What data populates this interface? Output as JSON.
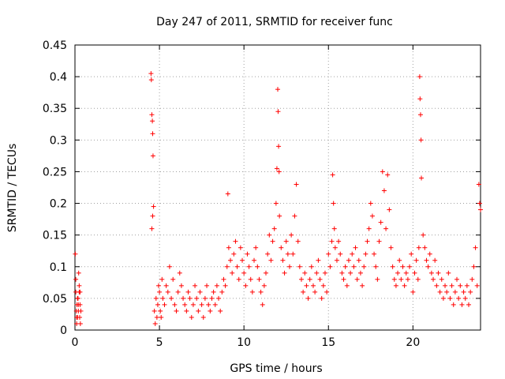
{
  "chart_data": {
    "type": "scatter",
    "title": "Day 247 of 2011, SRMTID for receiver func",
    "xlabel": "GPS time / hours",
    "ylabel": "SRMTID / TECUs",
    "xlim": [
      0,
      24
    ],
    "ylim": [
      0,
      0.45
    ],
    "x_ticks": [
      0,
      5,
      10,
      15,
      20
    ],
    "y_ticks": [
      0,
      0.05,
      0.1,
      0.15,
      0.2,
      0.25,
      0.3,
      0.35,
      0.4,
      0.45
    ],
    "x_tick_labels": [
      "0",
      "5",
      "10",
      "15",
      "20"
    ],
    "y_tick_labels": [
      "0",
      "0.05",
      "0.1",
      "0.15",
      "0.2",
      "0.25",
      "0.3",
      "0.35",
      "0.4",
      "0.45"
    ],
    "grid": true,
    "marker": "+",
    "color": "#ff0000",
    "series": [
      {
        "name": "SRMTID",
        "x": [
          0.02,
          0.05,
          0.08,
          0.1,
          0.12,
          0.15,
          0.18,
          0.2,
          0.22,
          0.25,
          0.28,
          0.3,
          0.32,
          0.35,
          0.05,
          0.15,
          0.25,
          0.1,
          0.2,
          0.3,
          4.5,
          4.52,
          4.55,
          4.58,
          4.6,
          4.62,
          4.65,
          4.6,
          4.55,
          4.7,
          4.75,
          4.8,
          4.85,
          4.9,
          4.95,
          5.0,
          5.05,
          5.1,
          5.15,
          5.2,
          5.3,
          5.4,
          5.5,
          5.6,
          5.7,
          5.8,
          5.9,
          6.0,
          6.1,
          6.2,
          6.3,
          6.4,
          6.5,
          6.6,
          6.7,
          6.8,
          6.9,
          7.0,
          7.1,
          7.2,
          7.3,
          7.4,
          7.5,
          7.6,
          7.7,
          7.8,
          7.9,
          8.0,
          8.1,
          8.2,
          8.3,
          8.4,
          8.5,
          8.6,
          8.7,
          8.8,
          8.9,
          9.0,
          9.05,
          9.1,
          9.2,
          9.3,
          9.4,
          9.5,
          9.6,
          9.7,
          9.8,
          9.9,
          10.0,
          10.1,
          10.2,
          10.3,
          10.4,
          10.5,
          10.6,
          10.7,
          10.8,
          10.9,
          11.0,
          11.1,
          11.2,
          11.3,
          11.4,
          11.5,
          11.6,
          11.7,
          11.8,
          11.9,
          11.95,
          12.0,
          12.02,
          12.05,
          12.08,
          12.1,
          12.2,
          12.3,
          12.4,
          12.5,
          12.6,
          12.7,
          12.8,
          12.9,
          13.0,
          13.1,
          13.2,
          13.3,
          13.4,
          13.5,
          13.6,
          13.7,
          13.8,
          13.9,
          14.0,
          14.1,
          14.2,
          14.3,
          14.4,
          14.5,
          14.6,
          14.7,
          14.8,
          14.9,
          15.0,
          15.1,
          15.2,
          15.25,
          15.3,
          15.35,
          15.4,
          15.5,
          15.6,
          15.7,
          15.8,
          15.9,
          16.0,
          16.1,
          16.2,
          16.3,
          16.4,
          16.5,
          16.6,
          16.7,
          16.8,
          16.9,
          17.0,
          17.1,
          17.2,
          17.3,
          17.4,
          17.5,
          17.6,
          17.7,
          17.8,
          17.9,
          18.0,
          18.1,
          18.2,
          18.3,
          18.4,
          18.5,
          18.6,
          18.7,
          18.8,
          18.9,
          19.0,
          19.1,
          19.2,
          19.3,
          19.4,
          19.5,
          19.6,
          19.7,
          19.8,
          19.9,
          20.0,
          20.1,
          20.2,
          20.3,
          20.35,
          20.4,
          20.42,
          20.45,
          20.48,
          20.5,
          20.6,
          20.7,
          20.8,
          20.9,
          21.0,
          21.1,
          21.2,
          21.3,
          21.4,
          21.5,
          21.6,
          21.7,
          21.8,
          21.9,
          22.0,
          22.1,
          22.2,
          22.3,
          22.4,
          22.5,
          22.6,
          22.7,
          22.8,
          22.9,
          23.0,
          23.1,
          23.2,
          23.3,
          23.4,
          23.5,
          23.6,
          23.7,
          23.8,
          23.9,
          23.95,
          24.0
        ],
        "y": [
          0.12,
          0.06,
          0.03,
          0.01,
          0.04,
          0.02,
          0.05,
          0.03,
          0.09,
          0.06,
          0.02,
          0.04,
          0.01,
          0.03,
          0.08,
          0.05,
          0.07,
          0.02,
          0.04,
          0.06,
          0.405,
          0.395,
          0.34,
          0.33,
          0.31,
          0.275,
          0.195,
          0.18,
          0.16,
          0.03,
          0.01,
          0.05,
          0.02,
          0.04,
          0.07,
          0.06,
          0.03,
          0.02,
          0.08,
          0.05,
          0.04,
          0.07,
          0.06,
          0.1,
          0.05,
          0.08,
          0.04,
          0.03,
          0.06,
          0.09,
          0.07,
          0.05,
          0.04,
          0.03,
          0.06,
          0.05,
          0.02,
          0.04,
          0.07,
          0.05,
          0.03,
          0.06,
          0.04,
          0.02,
          0.05,
          0.07,
          0.04,
          0.03,
          0.05,
          0.06,
          0.04,
          0.07,
          0.05,
          0.03,
          0.06,
          0.08,
          0.07,
          0.1,
          0.215,
          0.13,
          0.11,
          0.09,
          0.12,
          0.14,
          0.1,
          0.08,
          0.13,
          0.11,
          0.09,
          0.07,
          0.12,
          0.1,
          0.08,
          0.06,
          0.11,
          0.13,
          0.1,
          0.08,
          0.06,
          0.04,
          0.07,
          0.09,
          0.12,
          0.15,
          0.11,
          0.14,
          0.16,
          0.2,
          0.255,
          0.38,
          0.345,
          0.29,
          0.25,
          0.18,
          0.13,
          0.11,
          0.09,
          0.14,
          0.12,
          0.1,
          0.15,
          0.12,
          0.18,
          0.23,
          0.14,
          0.1,
          0.08,
          0.06,
          0.09,
          0.07,
          0.05,
          0.08,
          0.1,
          0.07,
          0.06,
          0.09,
          0.11,
          0.08,
          0.05,
          0.07,
          0.09,
          0.06,
          0.12,
          0.1,
          0.14,
          0.245,
          0.2,
          0.16,
          0.13,
          0.11,
          0.14,
          0.12,
          0.09,
          0.08,
          0.1,
          0.07,
          0.11,
          0.09,
          0.12,
          0.1,
          0.13,
          0.08,
          0.11,
          0.09,
          0.07,
          0.1,
          0.12,
          0.14,
          0.16,
          0.2,
          0.18,
          0.12,
          0.1,
          0.08,
          0.14,
          0.17,
          0.25,
          0.22,
          0.16,
          0.245,
          0.19,
          0.13,
          0.1,
          0.08,
          0.07,
          0.09,
          0.11,
          0.08,
          0.1,
          0.07,
          0.09,
          0.08,
          0.1,
          0.12,
          0.06,
          0.09,
          0.11,
          0.08,
          0.13,
          0.4,
          0.365,
          0.34,
          0.3,
          0.24,
          0.15,
          0.13,
          0.11,
          0.1,
          0.12,
          0.09,
          0.08,
          0.11,
          0.07,
          0.09,
          0.06,
          0.08,
          0.05,
          0.07,
          0.06,
          0.09,
          0.05,
          0.07,
          0.04,
          0.06,
          0.08,
          0.05,
          0.07,
          0.04,
          0.06,
          0.05,
          0.07,
          0.04,
          0.06,
          0.08,
          0.1,
          0.13,
          0.07,
          0.23,
          0.2,
          0.19
        ]
      }
    ]
  }
}
